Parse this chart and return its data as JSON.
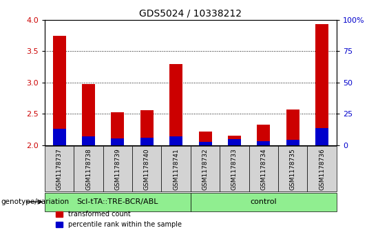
{
  "title": "GDS5024 / 10338212",
  "samples": [
    "GSM1178737",
    "GSM1178738",
    "GSM1178739",
    "GSM1178740",
    "GSM1178741",
    "GSM1178732",
    "GSM1178733",
    "GSM1178734",
    "GSM1178735",
    "GSM1178736"
  ],
  "red_values": [
    3.75,
    2.98,
    2.52,
    2.56,
    3.3,
    2.22,
    2.15,
    2.33,
    2.57,
    3.93
  ],
  "blue_values": [
    2.26,
    2.14,
    2.11,
    2.12,
    2.14,
    2.05,
    2.09,
    2.06,
    2.08,
    2.27
  ],
  "ymin": 2.0,
  "ymax": 4.0,
  "yticks": [
    2.0,
    2.5,
    3.0,
    3.5,
    4.0
  ],
  "right_yticks": [
    0,
    25,
    50,
    75,
    100
  ],
  "groups": [
    {
      "label": "Scl-tTA::TRE-BCR/ABL",
      "start": 0,
      "end": 5,
      "color": "#90ee90"
    },
    {
      "label": "control",
      "start": 5,
      "end": 10,
      "color": "#90ee90"
    }
  ],
  "bar_bg_color": "#d3d3d3",
  "red_color": "#cc0000",
  "blue_color": "#0000cc",
  "legend_red": "transformed count",
  "legend_blue": "percentile rank within the sample",
  "genotype_label": "genotype/variation",
  "left_label_color": "#cc0000",
  "right_label_color": "#0000cc",
  "bar_width": 0.45,
  "sample_fontsize": 6.5,
  "group_fontsize": 8,
  "title_fontsize": 10,
  "legend_fontsize": 7,
  "tick_fontsize": 8
}
